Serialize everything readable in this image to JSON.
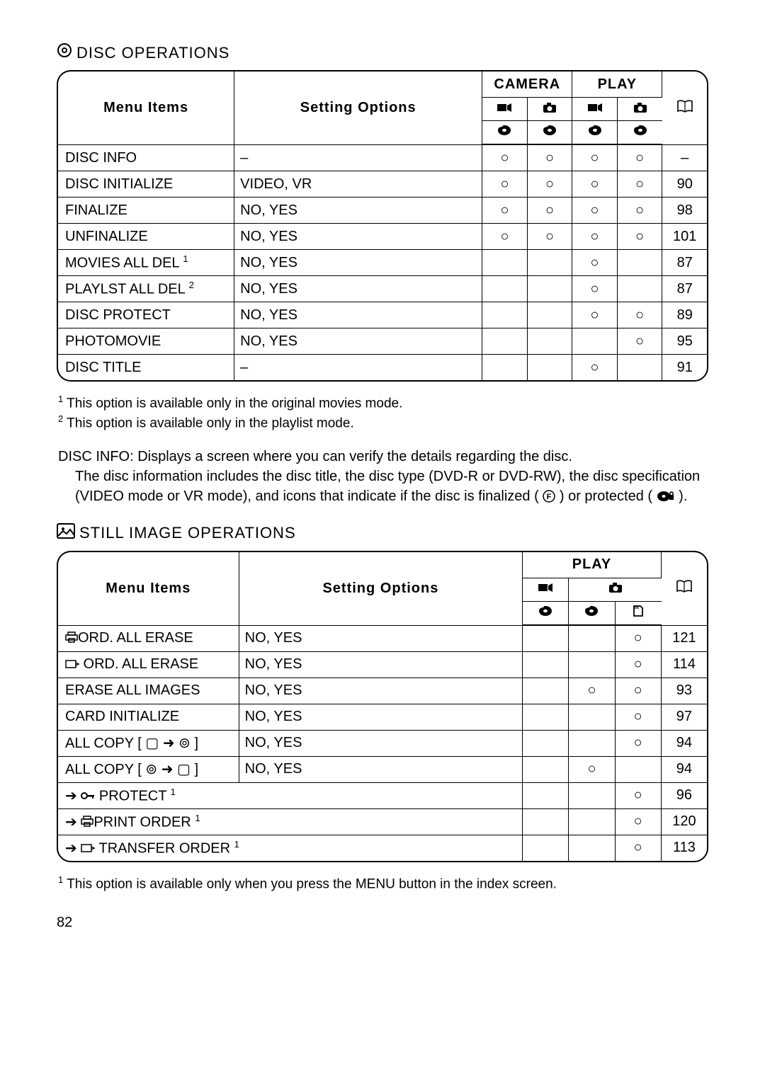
{
  "page_number": "82",
  "disc_section": {
    "title": "DISC OPERATIONS",
    "headers": {
      "menu": "Menu Items",
      "setting": "Setting Options",
      "camera": "CAMERA",
      "play": "PLAY"
    },
    "rows": [
      {
        "menu": "DISC INFO",
        "opt": "–",
        "m": [
          "○",
          "○",
          "○",
          "○"
        ],
        "page": "–"
      },
      {
        "menu": "DISC INITIALIZE",
        "opt": "VIDEO, VR",
        "m": [
          "○",
          "○",
          "○",
          "○"
        ],
        "page": "90"
      },
      {
        "menu": "FINALIZE",
        "opt": "NO, YES",
        "m": [
          "○",
          "○",
          "○",
          "○"
        ],
        "page": "98"
      },
      {
        "menu": "UNFINALIZE",
        "opt": "NO, YES",
        "m": [
          "○",
          "○",
          "○",
          "○"
        ],
        "page": "101"
      },
      {
        "menu": "MOVIES ALL DEL",
        "sup": "1",
        "opt": "NO, YES",
        "m": [
          "",
          "",
          "○",
          ""
        ],
        "page": "87"
      },
      {
        "menu": "PLAYLST ALL DEL",
        "sup": "2",
        "opt": "NO, YES",
        "m": [
          "",
          "",
          "○",
          ""
        ],
        "page": "87"
      },
      {
        "menu": "DISC PROTECT",
        "opt": "NO, YES",
        "m": [
          "",
          "",
          "○",
          "○"
        ],
        "page": "89"
      },
      {
        "menu": "PHOTOMOVIE",
        "opt": "NO, YES",
        "m": [
          "",
          "",
          "",
          "○"
        ],
        "page": "95"
      },
      {
        "menu": "DISC TITLE",
        "opt": "–",
        "m": [
          "",
          "",
          "○",
          ""
        ],
        "page": "91"
      }
    ],
    "footnotes": [
      {
        "n": "1",
        "text": " This option is available only in the original movies mode."
      },
      {
        "n": "2",
        "text": " This option is available only in the playlist mode."
      }
    ],
    "description_label": "DISC INFO:",
    "description_text": " Displays a screen where you can verify the details regarding the disc.",
    "description_body_1": "The disc information includes the disc title, the disc type (DVD-R or DVD-RW), the disc specification (VIDEO mode or VR mode), and icons that indicate if the disc is finalized (",
    "description_body_2": ") or protected (",
    "description_body_3": ")."
  },
  "still_section": {
    "title": "STILL IMAGE OPERATIONS",
    "headers": {
      "menu": "Menu Items",
      "setting": "Setting Options",
      "play": "PLAY"
    },
    "rows": [
      {
        "icon": "print",
        "menu": "ORD. ALL ERASE",
        "opt": "NO, YES",
        "m": [
          "",
          "",
          "○"
        ],
        "page": "121"
      },
      {
        "icon": "transfer",
        "menu": " ORD. ALL ERASE",
        "opt": "NO, YES",
        "m": [
          "",
          "",
          "○"
        ],
        "page": "114"
      },
      {
        "menu": "ERASE ALL IMAGES",
        "opt": "NO, YES",
        "m": [
          "",
          "○",
          "○"
        ],
        "page": "93"
      },
      {
        "menu": "CARD INITIALIZE",
        "opt": "NO, YES",
        "m": [
          "",
          "",
          "○"
        ],
        "page": "97"
      },
      {
        "menu_raw": "ALL COPY [ ▢ ➜ ⊚ ]",
        "opt": "NO, YES",
        "m": [
          "",
          "",
          "○"
        ],
        "page": "94"
      },
      {
        "menu_raw": "ALL COPY [ ⊚ ➜ ▢ ]",
        "opt": "NO, YES",
        "m": [
          "",
          "○",
          ""
        ],
        "page": "94"
      },
      {
        "arrow": true,
        "icon": "protect",
        "menu": " PROTECT",
        "sup": "1",
        "span": true,
        "m": [
          "",
          "",
          "○"
        ],
        "page": "96"
      },
      {
        "arrow": true,
        "icon": "print",
        "menu": "PRINT ORDER",
        "sup": "1",
        "span": true,
        "m": [
          "",
          "",
          "○"
        ],
        "page": "120"
      },
      {
        "arrow": true,
        "icon": "transfer",
        "menu": " TRANSFER ORDER",
        "sup": "1",
        "span": true,
        "m": [
          "",
          "",
          "○"
        ],
        "page": "113"
      }
    ],
    "footnotes": [
      {
        "n": "1",
        "text": " This option is available only when you press the MENU button in the index screen."
      }
    ]
  },
  "icons": {
    "disc": "⊚",
    "camera_movie": "▀▄",
    "camera_still": "📷",
    "book": "▭",
    "card": "▢",
    "arrow": "➜",
    "protect": "🔑",
    "finalized": "Ⓕ"
  }
}
